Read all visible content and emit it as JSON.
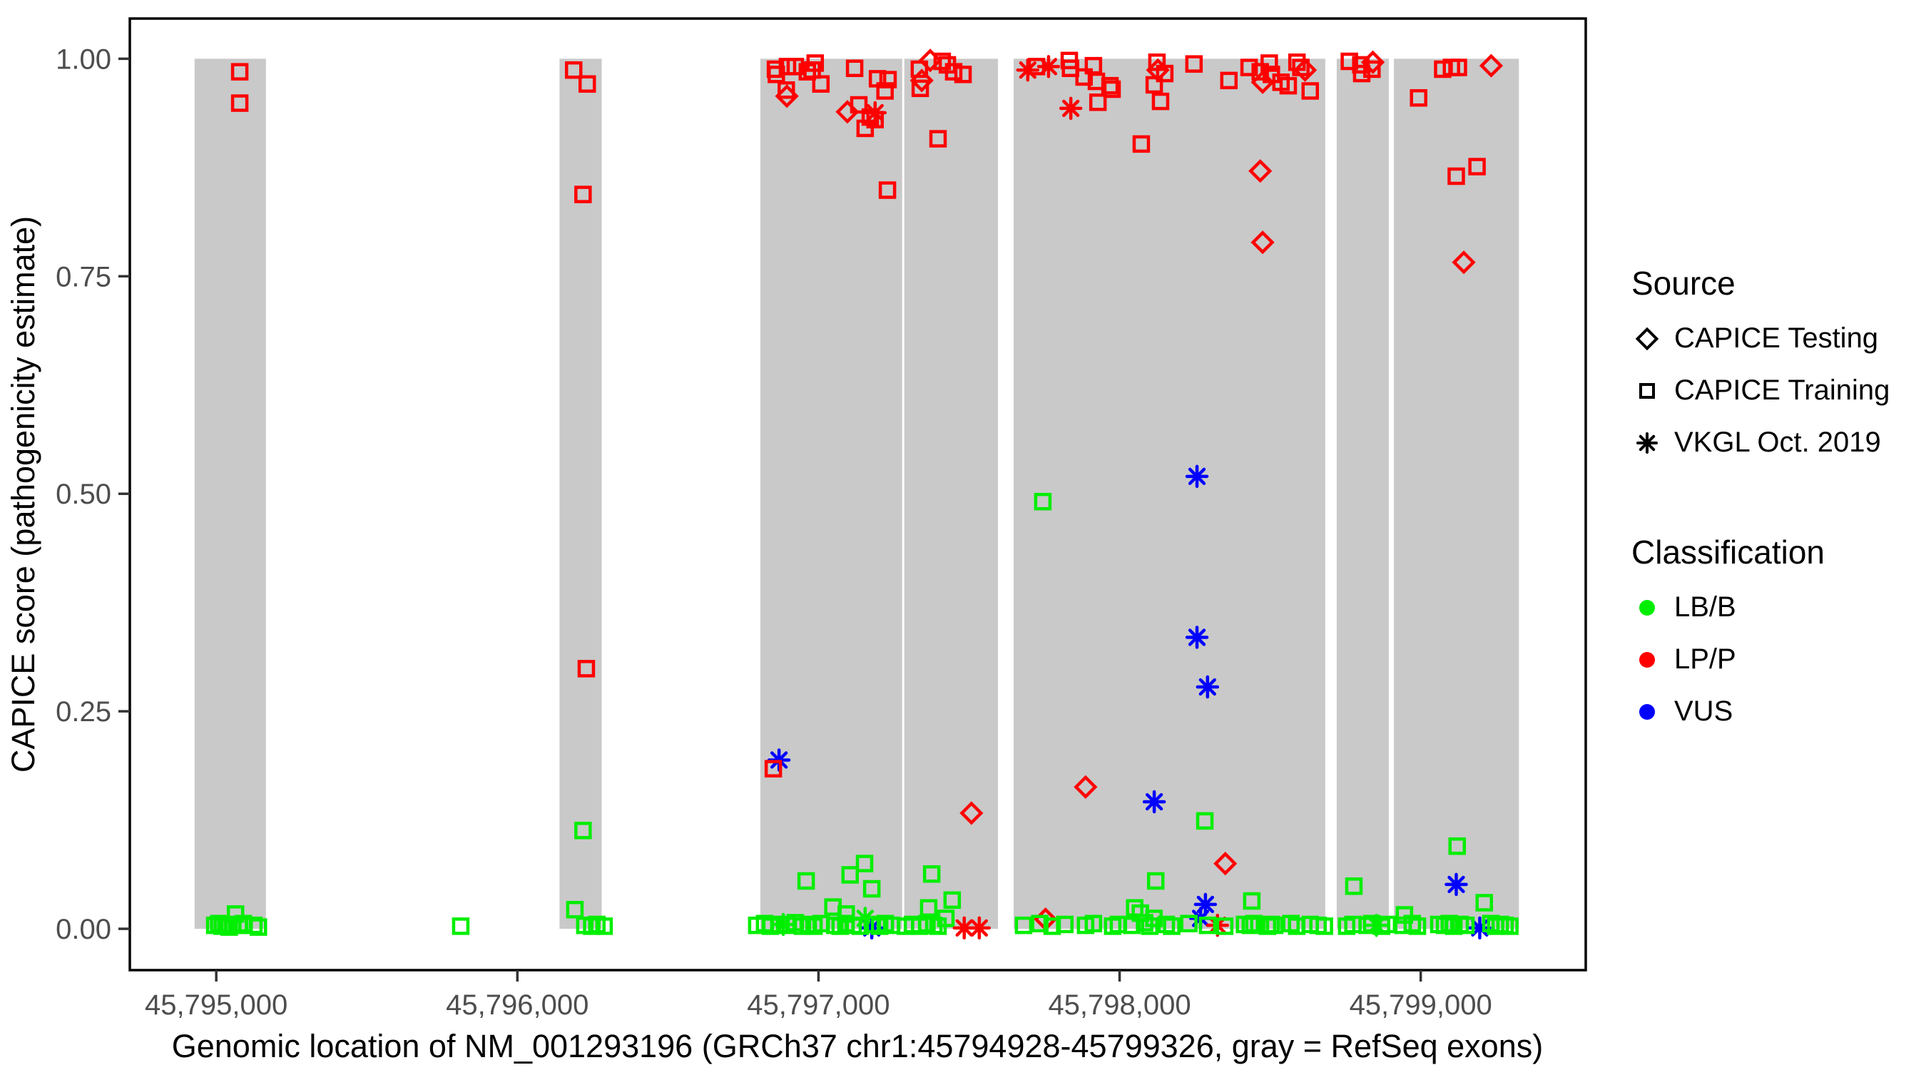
{
  "chart_data": {
    "type": "scatter",
    "title": "",
    "xlabel": "Genomic location of NM_001293196 (GRCh37 chr1:45794928-45799326, gray = RefSeq exons)",
    "ylabel": "CAPICE score (pathogenicity estimate)",
    "x_domain": [
      45794713,
      45799548
    ],
    "y_domain": [
      -0.0475,
      1.0462
    ],
    "x_ticks": [
      {
        "value": 45795000,
        "label": "45,795,000"
      },
      {
        "value": 45796000,
        "label": "45,796,000"
      },
      {
        "value": 45797000,
        "label": "45,797,000"
      },
      {
        "value": 45798000,
        "label": "45,798,000"
      },
      {
        "value": 45799000,
        "label": "45,799,000"
      }
    ],
    "y_ticks": [
      {
        "value": 0.0,
        "label": "0.00"
      },
      {
        "value": 0.25,
        "label": "0.25"
      },
      {
        "value": 0.5,
        "label": "0.50"
      },
      {
        "value": 0.75,
        "label": "0.75"
      },
      {
        "value": 1.0,
        "label": "1.00"
      }
    ],
    "grid": false,
    "legend_position": "right",
    "exon_color": "#C9C9C9",
    "tick_label_color": "#4D4D4D",
    "axis_color": "#000000",
    "class_colors": {
      "LB": "#00EE00",
      "LP": "#FF0000",
      "VUS": "#0000FF"
    },
    "exons": [
      [
        45794928,
        45795165
      ],
      [
        45796140,
        45796280
      ],
      [
        45796807,
        45797278
      ],
      [
        45797285,
        45797596
      ],
      [
        45797648,
        45798683
      ],
      [
        45798721,
        45798894
      ],
      [
        45798911,
        45799326
      ]
    ],
    "points": [
      [
        45795078,
        0.985,
        "sq",
        "LP"
      ],
      [
        45795078,
        0.949,
        "sq",
        "LP"
      ],
      [
        45794995,
        0.004,
        "sq",
        "LB"
      ],
      [
        45795008,
        0.006,
        "sq",
        "LB"
      ],
      [
        45795020,
        0.003,
        "sq",
        "LB"
      ],
      [
        45795032,
        0.005,
        "sq",
        "LB"
      ],
      [
        45795043,
        0.002,
        "sq",
        "LB"
      ],
      [
        45795055,
        0.004,
        "sq",
        "LB"
      ],
      [
        45795064,
        0.017,
        "sq",
        "LB"
      ],
      [
        45795076,
        0.004,
        "sq",
        "LB"
      ],
      [
        45795090,
        0.006,
        "sq",
        "LB"
      ],
      [
        45795125,
        0.004,
        "sq",
        "LB"
      ],
      [
        45795140,
        0.002,
        "sq",
        "LB"
      ],
      [
        45795812,
        0.003,
        "sq",
        "LB"
      ],
      [
        45796187,
        0.987,
        "sq",
        "LP"
      ],
      [
        45796232,
        0.971,
        "sq",
        "LP"
      ],
      [
        45796218,
        0.844,
        "sq",
        "LP"
      ],
      [
        45796229,
        0.299,
        "sq",
        "LP"
      ],
      [
        45796218,
        0.113,
        "sq",
        "LB"
      ],
      [
        45796191,
        0.022,
        "sq",
        "LB"
      ],
      [
        45796224,
        0.004,
        "sq",
        "LB"
      ],
      [
        45796247,
        0.003,
        "sq",
        "LB"
      ],
      [
        45796264,
        0.005,
        "sq",
        "LB"
      ],
      [
        45796288,
        0.003,
        "sq",
        "LB"
      ],
      [
        45796857,
        0.988,
        "sq",
        "LP"
      ],
      [
        45796860,
        0.982,
        "sq",
        "LP"
      ],
      [
        45796897,
        0.991,
        "sq",
        "LP"
      ],
      [
        45796923,
        0.991,
        "sq",
        "LP"
      ],
      [
        45796963,
        0.985,
        "sq",
        "LP"
      ],
      [
        45796989,
        0.995,
        "sq",
        "LP"
      ],
      [
        45796979,
        0.987,
        "sq",
        "LP"
      ],
      [
        45797008,
        0.971,
        "sq",
        "LP"
      ],
      [
        45796893,
        0.964,
        "sq",
        "LP"
      ],
      [
        45797120,
        0.989,
        "sq",
        "LP"
      ],
      [
        45797134,
        0.947,
        "sq",
        "LP"
      ],
      [
        45797196,
        0.977,
        "sq",
        "LP"
      ],
      [
        45797231,
        0.976,
        "sq",
        "LP"
      ],
      [
        45797221,
        0.963,
        "sq",
        "LP"
      ],
      [
        45797188,
        0.93,
        "sq",
        "LP"
      ],
      [
        45797172,
        0.933,
        "sq",
        "LP"
      ],
      [
        45797155,
        0.92,
        "sq",
        "LP"
      ],
      [
        45797229,
        0.849,
        "sq",
        "LP"
      ],
      [
        45796895,
        0.957,
        "di",
        "LP"
      ],
      [
        45797096,
        0.939,
        "di",
        "LP"
      ],
      [
        45797188,
        0.938,
        "as",
        "LP"
      ],
      [
        45796869,
        0.194,
        "as",
        "VUS"
      ],
      [
        45796850,
        0.184,
        "sq",
        "LP"
      ],
      [
        45796959,
        0.055,
        "sq",
        "LB"
      ],
      [
        45797105,
        0.062,
        "sq",
        "LB"
      ],
      [
        45797153,
        0.075,
        "sq",
        "LB"
      ],
      [
        45797177,
        0.046,
        "sq",
        "LB"
      ],
      [
        45797048,
        0.025,
        "sq",
        "LB"
      ],
      [
        45797092,
        0.017,
        "sq",
        "LB"
      ],
      [
        45797155,
        0.012,
        "as",
        "LB"
      ],
      [
        45796883,
        0.005,
        "as",
        "LB"
      ],
      [
        45797177,
        0.001,
        "as",
        "VUS"
      ],
      [
        45796795,
        0.004,
        "sq",
        "LB"
      ],
      [
        45796821,
        0.006,
        "sq",
        "LB"
      ],
      [
        45796840,
        0.003,
        "sq",
        "LB"
      ],
      [
        45796871,
        0.005,
        "sq",
        "LB"
      ],
      [
        45796895,
        0.004,
        "sq",
        "LB"
      ],
      [
        45796923,
        0.007,
        "sq",
        "LB"
      ],
      [
        45796947,
        0.003,
        "sq",
        "LB"
      ],
      [
        45796966,
        0.005,
        "sq",
        "LB"
      ],
      [
        45796985,
        0.003,
        "sq",
        "LB"
      ],
      [
        45797009,
        0.006,
        "sq",
        "LB"
      ],
      [
        45797054,
        0.004,
        "sq",
        "LB"
      ],
      [
        45797072,
        0.003,
        "sq",
        "LB"
      ],
      [
        45797091,
        0.006,
        "sq",
        "LB"
      ],
      [
        45797115,
        0.004,
        "sq",
        "LB"
      ],
      [
        45797139,
        0.003,
        "sq",
        "LB"
      ],
      [
        45797179,
        0.005,
        "sq",
        "LB"
      ],
      [
        45797203,
        0.003,
        "sq",
        "LB"
      ],
      [
        45797222,
        0.006,
        "sq",
        "LB"
      ],
      [
        45797243,
        0.004,
        "sq",
        "LB"
      ],
      [
        45797371,
        0.998,
        "di",
        "LP"
      ],
      [
        45797343,
        0.975,
        "di",
        "LP"
      ],
      [
        45797411,
        0.997,
        "sq",
        "LP"
      ],
      [
        45797428,
        0.993,
        "sq",
        "LP"
      ],
      [
        45797335,
        0.988,
        "sq",
        "LP"
      ],
      [
        45797449,
        0.985,
        "sq",
        "LP"
      ],
      [
        45797480,
        0.982,
        "sq",
        "LP"
      ],
      [
        45797338,
        0.966,
        "sq",
        "LP"
      ],
      [
        45797397,
        0.908,
        "sq",
        "LP"
      ],
      [
        45797508,
        0.133,
        "di",
        "LP"
      ],
      [
        45797376,
        0.063,
        "sq",
        "LB"
      ],
      [
        45797444,
        0.033,
        "sq",
        "LB"
      ],
      [
        45797366,
        0.024,
        "sq",
        "LB"
      ],
      [
        45797423,
        0.012,
        "sq",
        "LB"
      ],
      [
        45797484,
        0.001,
        "as",
        "LP"
      ],
      [
        45797534,
        0.001,
        "as",
        "LP"
      ],
      [
        45797289,
        0.003,
        "sq",
        "LB"
      ],
      [
        45797312,
        0.005,
        "sq",
        "LB"
      ],
      [
        45797336,
        0.003,
        "sq",
        "LB"
      ],
      [
        45797360,
        0.006,
        "sq",
        "LB"
      ],
      [
        45797383,
        0.004,
        "sq",
        "LB"
      ],
      [
        45797397,
        0.003,
        "sq",
        "LB"
      ],
      [
        45797695,
        0.987,
        "as",
        "LP"
      ],
      [
        45797764,
        0.991,
        "as",
        "LP"
      ],
      [
        45797838,
        0.943,
        "as",
        "LP"
      ],
      [
        45797724,
        0.991,
        "sq",
        "LP"
      ],
      [
        45797833,
        0.998,
        "sq",
        "LP"
      ],
      [
        45797837,
        0.989,
        "sq",
        "LP"
      ],
      [
        45797913,
        0.992,
        "sq",
        "LP"
      ],
      [
        45797882,
        0.979,
        "sq",
        "LP"
      ],
      [
        45797923,
        0.974,
        "sq",
        "LP"
      ],
      [
        45797968,
        0.969,
        "sq",
        "LP"
      ],
      [
        45797975,
        0.965,
        "sq",
        "LP"
      ],
      [
        45797928,
        0.95,
        "sq",
        "LP"
      ],
      [
        45798124,
        0.996,
        "sq",
        "LP"
      ],
      [
        45798115,
        0.97,
        "sq",
        "LP"
      ],
      [
        45798150,
        0.983,
        "sq",
        "LP"
      ],
      [
        45798136,
        0.951,
        "sq",
        "LP"
      ],
      [
        45798247,
        0.994,
        "sq",
        "LP"
      ],
      [
        45798363,
        0.975,
        "sq",
        "LP"
      ],
      [
        45798430,
        0.99,
        "sq",
        "LP"
      ],
      [
        45798497,
        0.995,
        "sq",
        "LP"
      ],
      [
        45798504,
        0.982,
        "sq",
        "LP"
      ],
      [
        45798467,
        0.985,
        "sq",
        "LP"
      ],
      [
        45798072,
        0.902,
        "sq",
        "LP"
      ],
      [
        45798536,
        0.973,
        "sq",
        "LP"
      ],
      [
        45798589,
        0.996,
        "sq",
        "LP"
      ],
      [
        45798560,
        0.969,
        "sq",
        "LP"
      ],
      [
        45798633,
        0.963,
        "sq",
        "LP"
      ],
      [
        45798602,
        0.99,
        "sq",
        "LP"
      ],
      [
        45798127,
        0.987,
        "di",
        "LP"
      ],
      [
        45798475,
        0.973,
        "di",
        "LP"
      ],
      [
        45798616,
        0.987,
        "di",
        "LP"
      ],
      [
        45798467,
        0.871,
        "di",
        "LP"
      ],
      [
        45798475,
        0.789,
        "di",
        "LP"
      ],
      [
        45798257,
        0.52,
        "as",
        "VUS"
      ],
      [
        45798257,
        0.335,
        "as",
        "VUS"
      ],
      [
        45798292,
        0.278,
        "as",
        "VUS"
      ],
      [
        45798115,
        0.146,
        "as",
        "VUS"
      ],
      [
        45798285,
        0.028,
        "as",
        "VUS"
      ],
      [
        45798269,
        0.012,
        "as",
        "VUS"
      ],
      [
        45797745,
        0.491,
        "sq",
        "LB"
      ],
      [
        45798283,
        0.124,
        "sq",
        "LB"
      ],
      [
        45798120,
        0.055,
        "sq",
        "LB"
      ],
      [
        45798439,
        0.032,
        "sq",
        "LB"
      ],
      [
        45798050,
        0.024,
        "sq",
        "LB"
      ],
      [
        45798069,
        0.018,
        "sq",
        "LB"
      ],
      [
        45797887,
        0.163,
        "di",
        "LP"
      ],
      [
        45798351,
        0.075,
        "di",
        "LP"
      ],
      [
        45797754,
        0.011,
        "di",
        "LP"
      ],
      [
        45798325,
        0.004,
        "as",
        "LP"
      ],
      [
        45797681,
        0.004,
        "sq",
        "LB"
      ],
      [
        45797735,
        0.006,
        "sq",
        "LB"
      ],
      [
        45797776,
        0.003,
        "sq",
        "LB"
      ],
      [
        45797818,
        0.005,
        "sq",
        "LB"
      ],
      [
        45797887,
        0.004,
        "sq",
        "LB"
      ],
      [
        45797913,
        0.006,
        "sq",
        "LB"
      ],
      [
        45797977,
        0.003,
        "sq",
        "LB"
      ],
      [
        45797996,
        0.005,
        "sq",
        "LB"
      ],
      [
        45798041,
        0.004,
        "sq",
        "LB"
      ],
      [
        45798083,
        0.007,
        "sq",
        "LB"
      ],
      [
        45798100,
        0.003,
        "sq",
        "LB"
      ],
      [
        45798114,
        0.012,
        "sq",
        "LB"
      ],
      [
        45798155,
        0.005,
        "sq",
        "LB"
      ],
      [
        45798173,
        0.003,
        "sq",
        "LB"
      ],
      [
        45798230,
        0.006,
        "sq",
        "LB"
      ],
      [
        45798292,
        0.004,
        "sq",
        "LB"
      ],
      [
        45798349,
        0.003,
        "sq",
        "LB"
      ],
      [
        45798415,
        0.005,
        "sq",
        "LB"
      ],
      [
        45798434,
        0.004,
        "sq",
        "LB"
      ],
      [
        45798446,
        0.006,
        "sq",
        "LB"
      ],
      [
        45798491,
        0.003,
        "sq",
        "LB"
      ],
      [
        45798503,
        0.005,
        "sq",
        "LB"
      ],
      [
        45798515,
        0.004,
        "sq",
        "LB"
      ],
      [
        45798569,
        0.006,
        "sq",
        "LB"
      ],
      [
        45798588,
        0.003,
        "sq",
        "LB"
      ],
      [
        45798633,
        0.005,
        "sq",
        "LB"
      ],
      [
        45798659,
        0.004,
        "sq",
        "LB"
      ],
      [
        45798680,
        0.003,
        "sq",
        "LB"
      ],
      [
        45798763,
        0.997,
        "sq",
        "LP"
      ],
      [
        45798801,
        0.993,
        "sq",
        "LP"
      ],
      [
        45798804,
        0.983,
        "sq",
        "LP"
      ],
      [
        45798838,
        0.988,
        "sq",
        "LP"
      ],
      [
        45798841,
        0.996,
        "di",
        "LP"
      ],
      [
        45798778,
        0.049,
        "sq",
        "LB"
      ],
      [
        45798754,
        0.003,
        "sq",
        "LB"
      ],
      [
        45798775,
        0.005,
        "sq",
        "LB"
      ],
      [
        45798822,
        0.004,
        "sq",
        "LB"
      ],
      [
        45798837,
        0.006,
        "sq",
        "LB"
      ],
      [
        45798870,
        0.003,
        "sq",
        "LB"
      ],
      [
        45798889,
        0.005,
        "sq",
        "LB"
      ],
      [
        45798853,
        0.004,
        "as",
        "LB"
      ],
      [
        45799073,
        0.988,
        "sq",
        "LP"
      ],
      [
        45799102,
        0.99,
        "sq",
        "LP"
      ],
      [
        45799125,
        0.99,
        "sq",
        "LP"
      ],
      [
        45798993,
        0.955,
        "sq",
        "LP"
      ],
      [
        45799118,
        0.865,
        "sq",
        "LP"
      ],
      [
        45799187,
        0.876,
        "sq",
        "LP"
      ],
      [
        45799234,
        0.992,
        "di",
        "LP"
      ],
      [
        45799143,
        0.766,
        "di",
        "LP"
      ],
      [
        45799121,
        0.095,
        "sq",
        "LB"
      ],
      [
        45799211,
        0.03,
        "sq",
        "LB"
      ],
      [
        45798946,
        0.016,
        "sq",
        "LB"
      ],
      [
        45799118,
        0.051,
        "as",
        "VUS"
      ],
      [
        45799196,
        0.001,
        "as",
        "VUS"
      ],
      [
        45798941,
        0.004,
        "sq",
        "LB"
      ],
      [
        45798972,
        0.006,
        "sq",
        "LB"
      ],
      [
        45798989,
        0.003,
        "sq",
        "LB"
      ],
      [
        45799060,
        0.005,
        "sq",
        "LB"
      ],
      [
        45799079,
        0.004,
        "sq",
        "LB"
      ],
      [
        45799095,
        0.006,
        "sq",
        "LB"
      ],
      [
        45799110,
        0.003,
        "sq",
        "LB"
      ],
      [
        45799131,
        0.005,
        "sq",
        "LB"
      ],
      [
        45799150,
        0.004,
        "sq",
        "LB"
      ],
      [
        45799233,
        0.006,
        "sq",
        "LB"
      ],
      [
        45799249,
        0.003,
        "sq",
        "LB"
      ],
      [
        45799264,
        0.005,
        "sq",
        "LB"
      ],
      [
        45799280,
        0.004,
        "sq",
        "LB"
      ],
      [
        45799296,
        0.003,
        "sq",
        "LB"
      ]
    ]
  },
  "legend": {
    "source": {
      "title": "Source",
      "items": [
        {
          "label": "CAPICE Testing",
          "shape": "diamond"
        },
        {
          "label": "CAPICE Training",
          "shape": "square"
        },
        {
          "label": "VKGL Oct. 2019",
          "shape": "asterisk"
        }
      ]
    },
    "classification": {
      "title": "Classification",
      "items": [
        {
          "label": "LB/B",
          "color": "#00EE00"
        },
        {
          "label": "LP/P",
          "color": "#FF0000"
        },
        {
          "label": "VUS",
          "color": "#0000FF"
        }
      ]
    }
  }
}
